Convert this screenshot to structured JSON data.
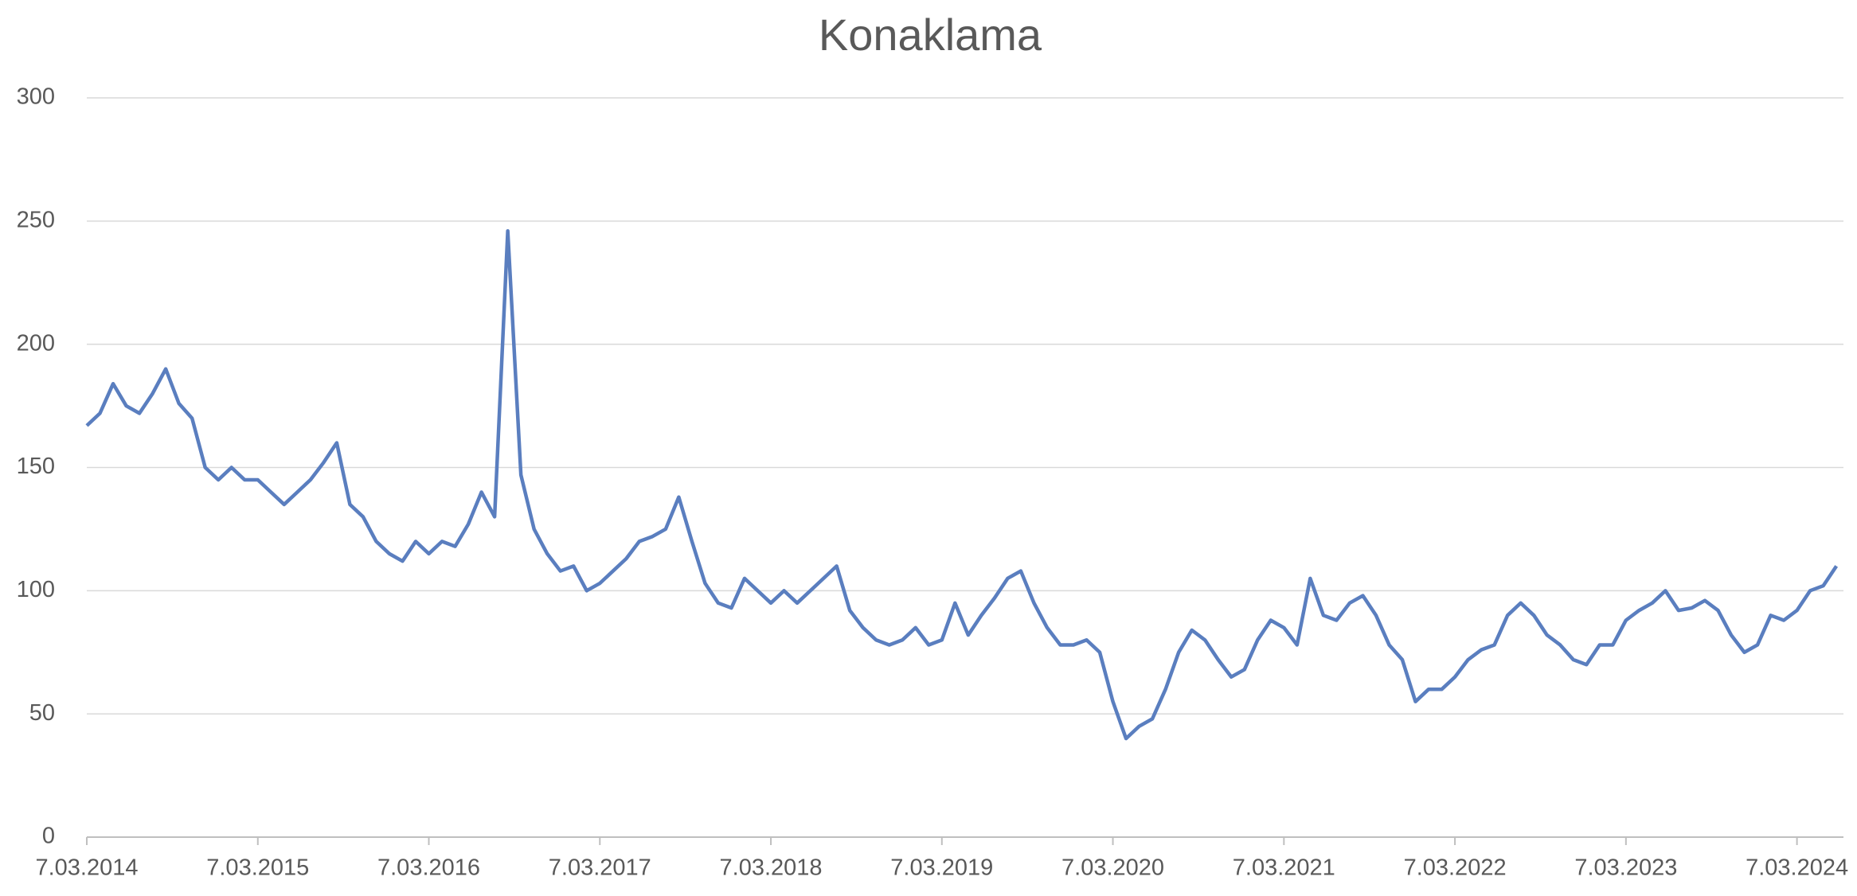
{
  "chart_data": {
    "type": "line",
    "title": "Konaklama",
    "categories": [
      "7.03.2014",
      null,
      null,
      null,
      null,
      null,
      null,
      null,
      null,
      null,
      null,
      null,
      null,
      "7.03.2015",
      null,
      null,
      null,
      null,
      null,
      null,
      null,
      null,
      null,
      null,
      null,
      null,
      "7.03.2016",
      null,
      null,
      null,
      null,
      null,
      null,
      null,
      null,
      null,
      null,
      null,
      null,
      "7.03.2017",
      null,
      null,
      null,
      null,
      null,
      null,
      null,
      null,
      null,
      null,
      null,
      null,
      "7.03.2018",
      null,
      null,
      null,
      null,
      null,
      null,
      null,
      null,
      null,
      null,
      null,
      null,
      "7.03.2019",
      null,
      null,
      null,
      null,
      null,
      null,
      null,
      null,
      null,
      null,
      null,
      null,
      "7.03.2020",
      null,
      null,
      null,
      null,
      null,
      null,
      null,
      null,
      null,
      null,
      null,
      null,
      "7.03.2021",
      null,
      null,
      null,
      null,
      null,
      null,
      null,
      null,
      null,
      null,
      null,
      null,
      "7.03.2022",
      null,
      null,
      null,
      null,
      null,
      null,
      null,
      null,
      null,
      null,
      null,
      null,
      "7.03.2023",
      null,
      null,
      null,
      null,
      null,
      null,
      null,
      null,
      null,
      null,
      null,
      null,
      "7.03.2024",
      null,
      null,
      null
    ],
    "values": [
      167,
      172,
      184,
      175,
      172,
      180,
      190,
      176,
      170,
      150,
      145,
      150,
      145,
      145,
      140,
      135,
      140,
      145,
      152,
      160,
      135,
      130,
      120,
      115,
      112,
      120,
      115,
      120,
      118,
      127,
      140,
      130,
      246,
      147,
      125,
      115,
      108,
      110,
      100,
      103,
      108,
      113,
      120,
      122,
      125,
      138,
      120,
      103,
      95,
      93,
      105,
      100,
      95,
      100,
      95,
      100,
      105,
      110,
      92,
      85,
      80,
      78,
      80,
      85,
      78,
      80,
      95,
      82,
      90,
      97,
      105,
      108,
      95,
      85,
      78,
      78,
      80,
      75,
      55,
      40,
      45,
      48,
      60,
      75,
      84,
      80,
      72,
      65,
      68,
      80,
      88,
      85,
      78,
      105,
      90,
      88,
      95,
      98,
      90,
      78,
      72,
      55,
      60,
      60,
      65,
      72,
      76,
      78,
      90,
      95,
      90,
      82,
      78,
      72,
      70,
      78,
      78,
      88,
      92,
      95,
      100,
      92,
      93,
      96,
      92,
      82,
      75,
      78,
      90,
      88,
      92,
      100,
      102,
      110
    ],
    "color": "#5a7ebf",
    "ylim": [
      0,
      300
    ],
    "yticks": [
      0,
      50,
      100,
      150,
      200,
      250,
      300
    ],
    "grid": true
  }
}
